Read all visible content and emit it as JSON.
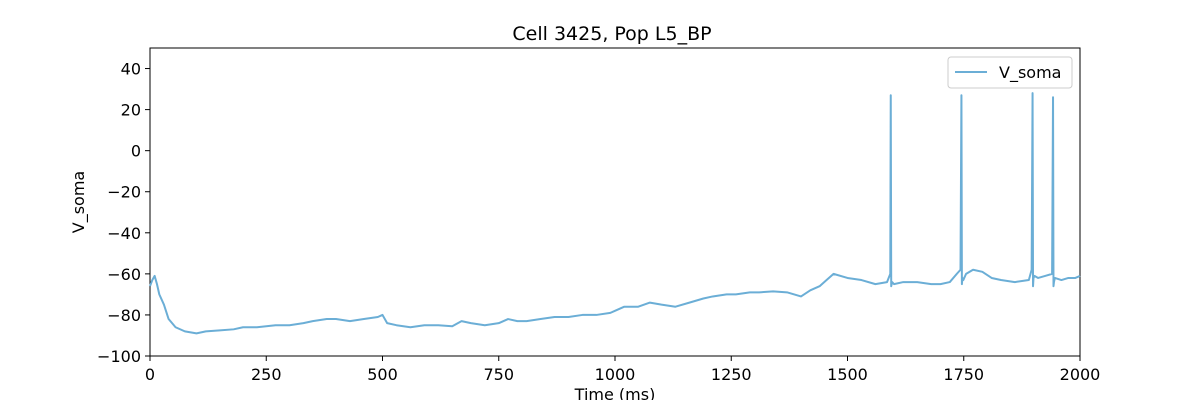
{
  "chart_data": {
    "type": "line",
    "title": "Cell 3425, Pop L5_BP",
    "xlabel": "Time (ms)",
    "ylabel": "V_soma",
    "xlim": [
      0,
      2000
    ],
    "ylim": [
      -100,
      50
    ],
    "x_ticks": [
      0,
      250,
      500,
      750,
      1000,
      1250,
      1500,
      1750,
      2000
    ],
    "y_ticks": [
      -100,
      -80,
      -60,
      -40,
      -20,
      0,
      20,
      40
    ],
    "grid": false,
    "legend_position": "top-right",
    "series": [
      {
        "name": "V_soma",
        "color": "#6baed6",
        "x": [
          0,
          5,
          10,
          15,
          20,
          30,
          40,
          55,
          75,
          100,
          120,
          150,
          180,
          200,
          230,
          250,
          270,
          300,
          330,
          350,
          380,
          400,
          430,
          460,
          490,
          500,
          510,
          530,
          560,
          590,
          620,
          650,
          670,
          690,
          720,
          750,
          770,
          790,
          810,
          840,
          870,
          900,
          930,
          960,
          990,
          1000,
          1020,
          1050,
          1075,
          1100,
          1130,
          1160,
          1190,
          1210,
          1240,
          1260,
          1290,
          1310,
          1340,
          1370,
          1400,
          1420,
          1440,
          1455,
          1470,
          1500,
          1530,
          1560,
          1585,
          1592,
          1593,
          1594,
          1596,
          1600,
          1620,
          1650,
          1680,
          1700,
          1720,
          1735,
          1743,
          1745,
          1746,
          1747,
          1749,
          1755,
          1770,
          1790,
          1810,
          1830,
          1860,
          1890,
          1896,
          1898,
          1899,
          1900,
          1902,
          1910,
          1925,
          1940,
          1942,
          1943,
          1944,
          1946,
          1960,
          1975,
          1990,
          2000
        ],
        "y": [
          -66,
          -63,
          -61,
          -65,
          -70,
          -75,
          -82,
          -86,
          -88,
          -89,
          -88,
          -87.5,
          -87,
          -86,
          -86,
          -85.5,
          -85,
          -85,
          -84,
          -83,
          -82,
          -82,
          -83,
          -82,
          -81,
          -80,
          -84,
          -85,
          -86,
          -85,
          -85,
          -85.5,
          -83,
          -84,
          -85,
          -84,
          -82,
          -83,
          -83,
          -82,
          -81,
          -81,
          -80,
          -80,
          -79,
          -78,
          -76,
          -76,
          -74,
          -75,
          -76,
          -74,
          -72,
          -71,
          -70,
          -70,
          -69,
          -69,
          -68.5,
          -69,
          -71,
          -68,
          -66,
          -63,
          -60,
          -62,
          -63,
          -65,
          -64,
          -60,
          27,
          -66,
          -64,
          -65,
          -64,
          -64,
          -65,
          -65,
          -64,
          -60,
          -58,
          27,
          -65,
          -62,
          -63,
          -60,
          -58,
          -59,
          -62,
          -63,
          -64,
          -63,
          -58,
          28,
          -66,
          -62,
          -61,
          -62,
          -61,
          -60,
          26,
          -66,
          -64,
          -62,
          -63,
          -62,
          -62,
          -61
        ]
      }
    ]
  }
}
